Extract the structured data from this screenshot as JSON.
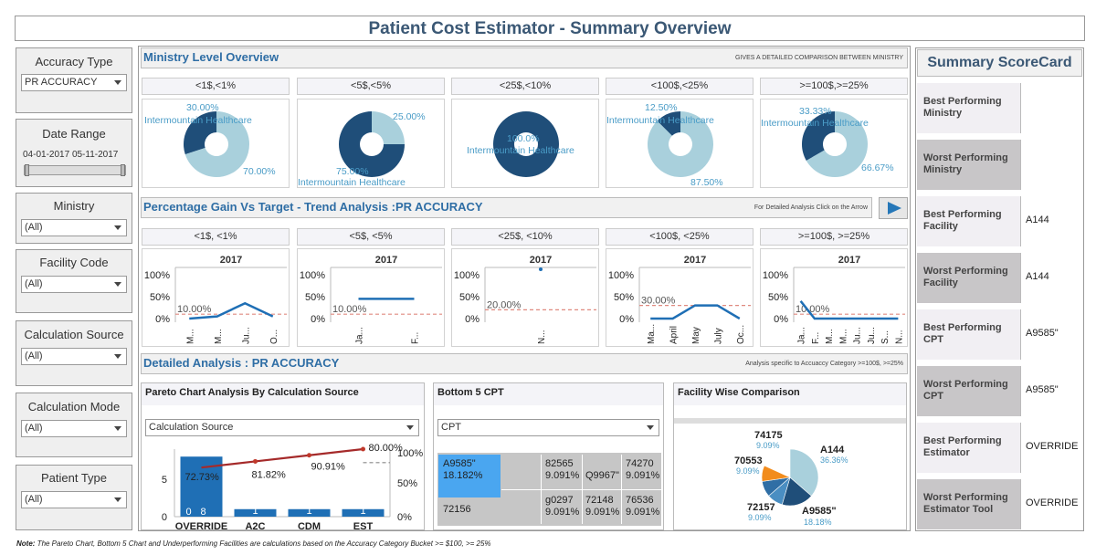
{
  "title": "Patient Cost Estimator - Summary Overview",
  "filters": [
    {
      "label": "Accuracy Type",
      "value": "PR ACCURACY"
    },
    {
      "label": "Date Range",
      "start": "04-01-2017",
      "end": "05-11-2017"
    },
    {
      "label": "Ministry",
      "value": "(All)"
    },
    {
      "label": "Facility Code",
      "value": "(All)"
    },
    {
      "label": "Calculation Source",
      "value": "(All)"
    },
    {
      "label": "Calculation Mode",
      "value": "(All)"
    },
    {
      "label": "Patient Type",
      "value": "(All)"
    }
  ],
  "ministry": {
    "title": "Ministry Level Overview",
    "note": "GIVES A DETAILED COMPARISON BETWEEN MINISTRY",
    "buckets": [
      "<1$,<1%",
      "<5$,<5%",
      "<25$,<10%",
      "<100$,<25%",
      ">=100$,>=25%"
    ],
    "entity": "Intermountain Healthcare",
    "pies": [
      {
        "primary": 30.0,
        "primary_label": "30.00%",
        "other_label": "70.00%"
      },
      {
        "primary": 75.0,
        "primary_label": "75.00%",
        "other_label": "25.00%"
      },
      {
        "primary": 100.0,
        "primary_label": "100.0%",
        "other_label": ""
      },
      {
        "primary": 12.5,
        "primary_label": "12.50%",
        "other_label": "87.50%"
      },
      {
        "primary": 33.33,
        "primary_label": "33.33%",
        "other_label": "66.67%"
      }
    ],
    "colors": {
      "primary": "#1f4e79",
      "other": "#a9d0dc"
    }
  },
  "trend": {
    "title": "Percentage Gain Vs Target - Trend Analysis :PR ACCURACY",
    "note": "For Detailed Analysis Click on the Arrow",
    "buckets": [
      "<1$, <1%",
      "<5$, <5%",
      "<25$, <10%",
      "<100$, <25%",
      ">=100$, >=25%"
    ],
    "year": "2017",
    "y_ticks": [
      "100%",
      "50%",
      "0%"
    ],
    "panels": [
      {
        "target": "10.00%",
        "x_labels": [
          "M...",
          "M...",
          "Ju...",
          "O..."
        ],
        "values": [
          0,
          5,
          35,
          5
        ]
      },
      {
        "target": "10.00%",
        "x_labels": [
          "Ja...",
          "F..."
        ],
        "values": [
          45,
          45
        ]
      },
      {
        "target": "20.00%",
        "x_labels": [
          "N..."
        ],
        "values": [
          100
        ]
      },
      {
        "target": "30.00%",
        "x_labels": [
          "Ma...",
          "April",
          "May",
          "July",
          "Oc..."
        ],
        "values": [
          0,
          0,
          30,
          30,
          0
        ]
      },
      {
        "target": "10.00%",
        "x_labels": [
          "Ja...",
          "F...",
          "M...",
          "M...",
          "Ju...",
          "Ju...",
          "S...",
          "N..."
        ],
        "values": [
          0,
          0,
          0,
          0,
          0,
          0,
          0,
          0
        ],
        "first_point": 40
      }
    ],
    "colors": {
      "line": "#1f6fb5",
      "target": "#e08a80"
    }
  },
  "detailed": {
    "title": "Detailed Analysis : PR ACCURACY",
    "note": "Analysis specific to Accuaccy Category  >=100$, >=25%"
  },
  "pareto": {
    "title": "Pareto Chart Analysis By Calculation Source",
    "dropdown": "Calculation Source",
    "y_ticks": [
      "5",
      "0"
    ],
    "y2_ticks": [
      "100%",
      "50%",
      "0%"
    ],
    "bar_labels": [
      "0",
      "8",
      "1",
      "1",
      "1"
    ],
    "cum_labels": [
      "72.73%",
      "81.82%",
      "90.91%",
      "80.00%"
    ]
  },
  "chart_data": {
    "type": "bar",
    "title": "Pareto Chart Analysis By Calculation Source",
    "categories": [
      "OVERRIDE",
      "A2C",
      "CDM",
      "EST"
    ],
    "values": [
      8,
      1,
      1,
      1
    ],
    "cumulative_pct": [
      72.73,
      81.82,
      90.91,
      100
    ],
    "target_pct": 80,
    "ylim": [
      0,
      9
    ],
    "y2lim": [
      0,
      100
    ]
  },
  "bottom5": {
    "title": "Bottom 5 CPT",
    "dropdown": "CPT",
    "cells": [
      {
        "code": "A9585\"",
        "pct": "18.182%"
      },
      {
        "code": "82565",
        "pct": "9.091%"
      },
      {
        "code": "Q9967\"",
        "pct": ""
      },
      {
        "code": "74270",
        "pct": "9.091%"
      },
      {
        "code": "72156",
        "pct": ""
      },
      {
        "code": "g0297",
        "pct": "9.091%"
      },
      {
        "code": "72148",
        "pct": "9.091%"
      },
      {
        "code": "76536",
        "pct": "9.091%"
      }
    ]
  },
  "facility": {
    "title": "Facility Wise Comparison",
    "slices": [
      {
        "name": "A144",
        "pct": "36.36%",
        "value": 36.36,
        "color": "#a9d0dc"
      },
      {
        "name": "A9585\"",
        "pct": "18.18%",
        "value": 18.18,
        "color": "#1f4e79"
      },
      {
        "name": "72157",
        "pct": "9.09%",
        "value": 9.09,
        "color": "#4a8ec2"
      },
      {
        "name": "70553",
        "pct": "9.09%",
        "value": 9.09,
        "color": "#2f6ea5"
      },
      {
        "name": "74175",
        "pct": "9.09%",
        "value": 9.09,
        "color": "#f28c1c"
      }
    ]
  },
  "scorecard": {
    "title": "Summary ScoreCard",
    "rows": [
      {
        "label": "Best Performing Ministry",
        "value": ""
      },
      {
        "label": "Worst Performing Ministry",
        "value": ""
      },
      {
        "label": "Best Performing Facility",
        "value": "A144"
      },
      {
        "label": "Worst Performing Facility",
        "value": "A144"
      },
      {
        "label": "Best Performing CPT",
        "value": "A9585\""
      },
      {
        "label": "Worst Performing CPT",
        "value": "A9585\""
      },
      {
        "label": "Best Performing Estimator",
        "value": "OVERRIDE"
      },
      {
        "label": "Worst Performing Estimator Tool",
        "value": "OVERRIDE"
      }
    ]
  },
  "footnote": {
    "bold": "Note:",
    "text": " The Pareto Chart, Bottom 5 Chart and Underperforming Facilities are calculations based on the Accuracy Category Bucket >= $100, >= 25%"
  }
}
